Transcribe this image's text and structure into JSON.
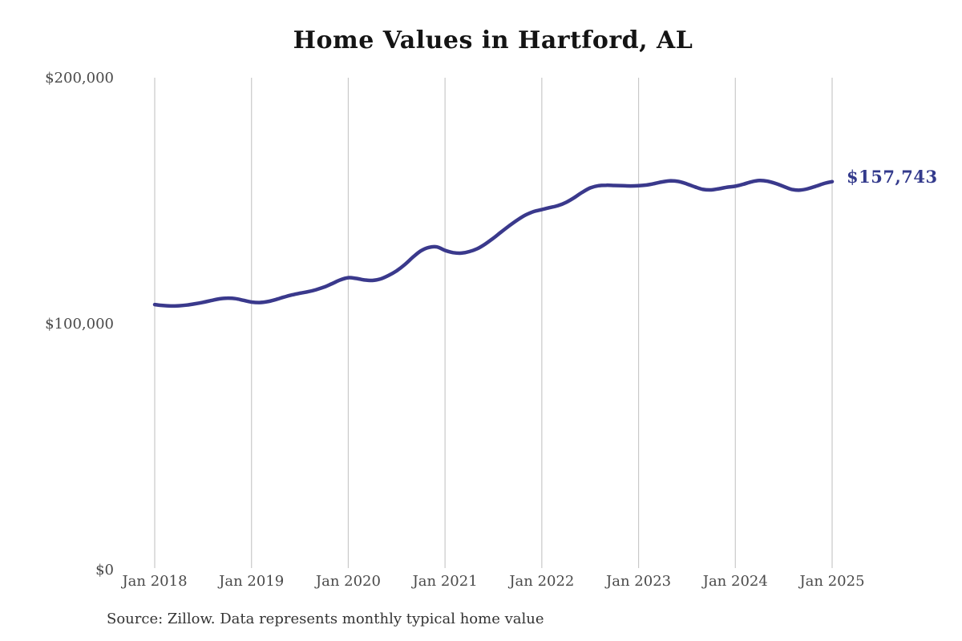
{
  "chart": {
    "title": "Home Values in Hartford, AL",
    "end_label": "$157,743",
    "source_note": "Source: Zillow. Data represents monthly typical home value"
  },
  "colors": {
    "background": "#ffffff",
    "line": "#3a398c",
    "grid": "#c9c9c9",
    "axis_text": "#4a4a4a",
    "title_text": "#141414",
    "annotation_text": "#333a8c",
    "source_text": "#333333"
  },
  "chart_data": {
    "type": "line",
    "title": "Home Values in Hartford, AL",
    "xlabel": "",
    "ylabel": "",
    "x_interval": "monthly",
    "x_start": "2018-01",
    "x_end": "2025-01",
    "x_tick_labels": [
      "Jan 2018",
      "Jan 2019",
      "Jan 2020",
      "Jan 2021",
      "Jan 2022",
      "Jan 2023",
      "Jan 2024",
      "Jan 2025"
    ],
    "y_tick_labels": [
      "$0",
      "$100,000",
      "$200,000"
    ],
    "y_tick_values": [
      0,
      100000,
      200000
    ],
    "ylim": [
      0,
      200000
    ],
    "grid": "vertical-only",
    "legend": "none",
    "annotation": {
      "text": "$157,743",
      "value": 157743,
      "position": "line-end"
    },
    "series": [
      {
        "name": "Monthly typical home value",
        "values": [
          107800,
          107400,
          107200,
          107300,
          107600,
          108100,
          108700,
          109400,
          110100,
          110400,
          110200,
          109500,
          108800,
          108600,
          109000,
          109800,
          110800,
          111700,
          112400,
          113000,
          113800,
          114900,
          116300,
          117800,
          118700,
          118400,
          117800,
          117600,
          118200,
          119600,
          121500,
          124000,
          127000,
          129600,
          131000,
          131200,
          129800,
          128900,
          128700,
          129300,
          130500,
          132400,
          134800,
          137400,
          139900,
          142200,
          144200,
          145600,
          146400,
          147200,
          148000,
          149300,
          151200,
          153400,
          155200,
          156100,
          156300,
          156200,
          156100,
          156000,
          156100,
          156400,
          157000,
          157700,
          158100,
          157800,
          156800,
          155600,
          154600,
          154400,
          154900,
          155500,
          155900,
          156700,
          157700,
          158200,
          157900,
          157000,
          155800,
          154600,
          154300,
          154900,
          155900,
          157000,
          157743
        ]
      }
    ]
  }
}
